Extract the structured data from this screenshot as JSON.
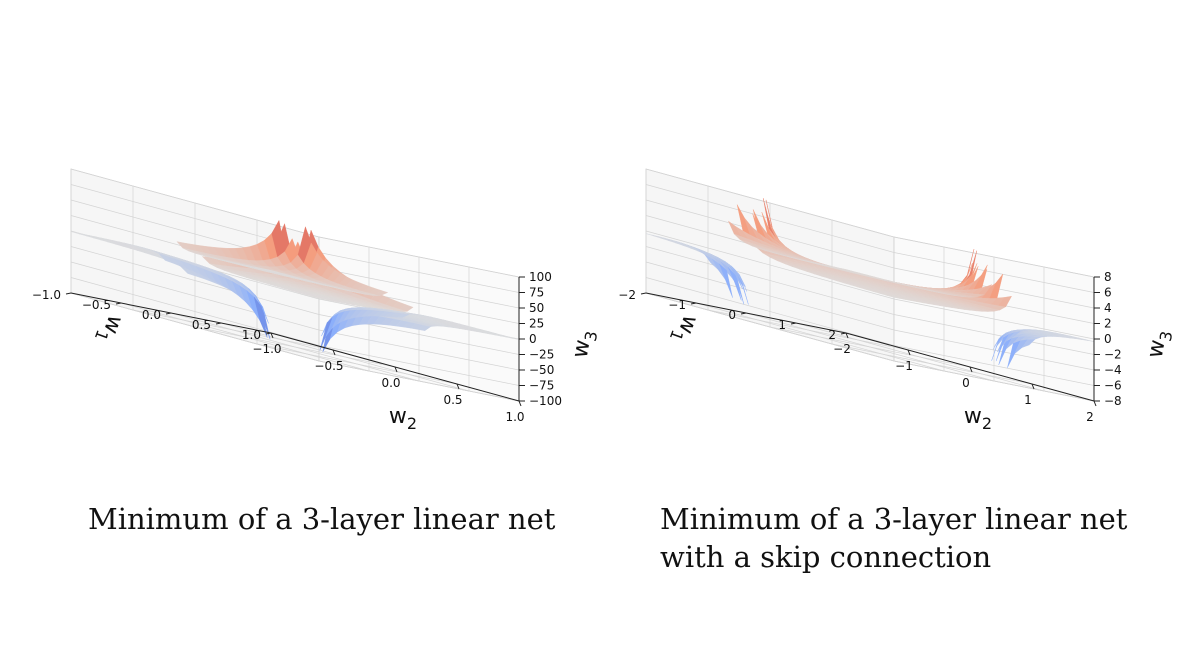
{
  "chart_data": [
    {
      "type": "surface3d",
      "title": "",
      "xlabel": "w_2",
      "ylabel": "w_1",
      "zlabel": "w_3",
      "xlim": [
        -1.0,
        1.0
      ],
      "ylim": [
        -1.0,
        1.0
      ],
      "zlim": [
        -100,
        100
      ],
      "x_ticks": [
        "−1.0",
        "−0.5",
        "0.0",
        "0.5",
        "1.0"
      ],
      "y_ticks": [
        "−1.0",
        "−0.5",
        "0.0",
        "0.5",
        "1.0"
      ],
      "z_ticks": [
        "100",
        "75",
        "50",
        "25",
        "0",
        "−25",
        "−50",
        "−75",
        "−100"
      ],
      "colormap": "coolwarm",
      "surface": "w_3 = 1 / (w_1 · w_2)",
      "grid": true
    },
    {
      "type": "surface3d",
      "title": "",
      "xlabel": "w_2",
      "ylabel": "w_1",
      "zlabel": "w_3",
      "xlim": [
        -2,
        2
      ],
      "ylim": [
        -2,
        2
      ],
      "zlim": [
        -8,
        8
      ],
      "x_ticks": [
        "−2",
        "−1",
        "0",
        "1",
        "2"
      ],
      "y_ticks": [
        "−2",
        "−1",
        "0",
        "1",
        "2"
      ],
      "z_ticks": [
        "8",
        "6",
        "4",
        "2",
        "0",
        "−2",
        "−4",
        "−6",
        "−8"
      ],
      "colormap": "coolwarm",
      "surface": "w_3 = 1 / (w_1 · w_2 + 1)",
      "grid": true
    }
  ],
  "captions": {
    "left": [
      "Minimum of a 3-layer linear net"
    ],
    "right": [
      "Minimum of a 3-layer linear net",
      "with a skip connection"
    ]
  },
  "colors": {
    "red_top": "#b4142a",
    "red_mid": "#ee8468",
    "neutral": "#dcdcdc",
    "blue_mid": "#8aaefb",
    "blue_low": "#3b4cc0"
  }
}
